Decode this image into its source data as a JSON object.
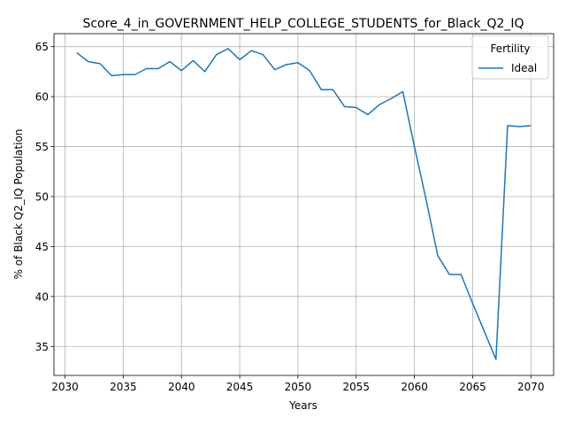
{
  "chart_data": {
    "type": "line",
    "title": "Score_4_in_GOVERNMENT_HELP_COLLEGE_STUDENTS_for_Black_Q2_IQ",
    "xlabel": "Years",
    "ylabel": "% of Black Q2_IQ Population",
    "xlim": [
      2029.05,
      2071.95
    ],
    "ylim": [
      32.1,
      66.3
    ],
    "xticks": [
      2030,
      2035,
      2040,
      2045,
      2050,
      2055,
      2060,
      2065,
      2070
    ],
    "yticks": [
      35,
      40,
      45,
      50,
      55,
      60,
      65
    ],
    "grid": true,
    "legend": {
      "title": "Fertility",
      "placement": "top-right"
    },
    "series": [
      {
        "name": "Ideal",
        "color": "#1f77b4",
        "x": [
          2031,
          2032,
          2033,
          2034,
          2035,
          2036,
          2037,
          2038,
          2039,
          2040,
          2041,
          2042,
          2043,
          2044,
          2045,
          2046,
          2047,
          2048,
          2049,
          2050,
          2051,
          2052,
          2053,
          2054,
          2055,
          2056,
          2057,
          2058,
          2059,
          2060,
          2061,
          2062,
          2063,
          2064,
          2065,
          2066,
          2067,
          2068,
          2069,
          2070
        ],
        "y": [
          64.4,
          63.5,
          63.3,
          62.1,
          62.2,
          62.2,
          62.8,
          62.8,
          63.5,
          62.6,
          63.6,
          62.5,
          64.2,
          64.8,
          63.7,
          64.6,
          64.2,
          62.7,
          63.2,
          63.4,
          62.6,
          60.7,
          60.7,
          59.0,
          58.9,
          58.2,
          59.2,
          59.8,
          60.5,
          55.0,
          49.7,
          44.1,
          42.2,
          42.2,
          39.3,
          36.5,
          33.7,
          57.1,
          57.0,
          57.1
        ]
      }
    ]
  }
}
